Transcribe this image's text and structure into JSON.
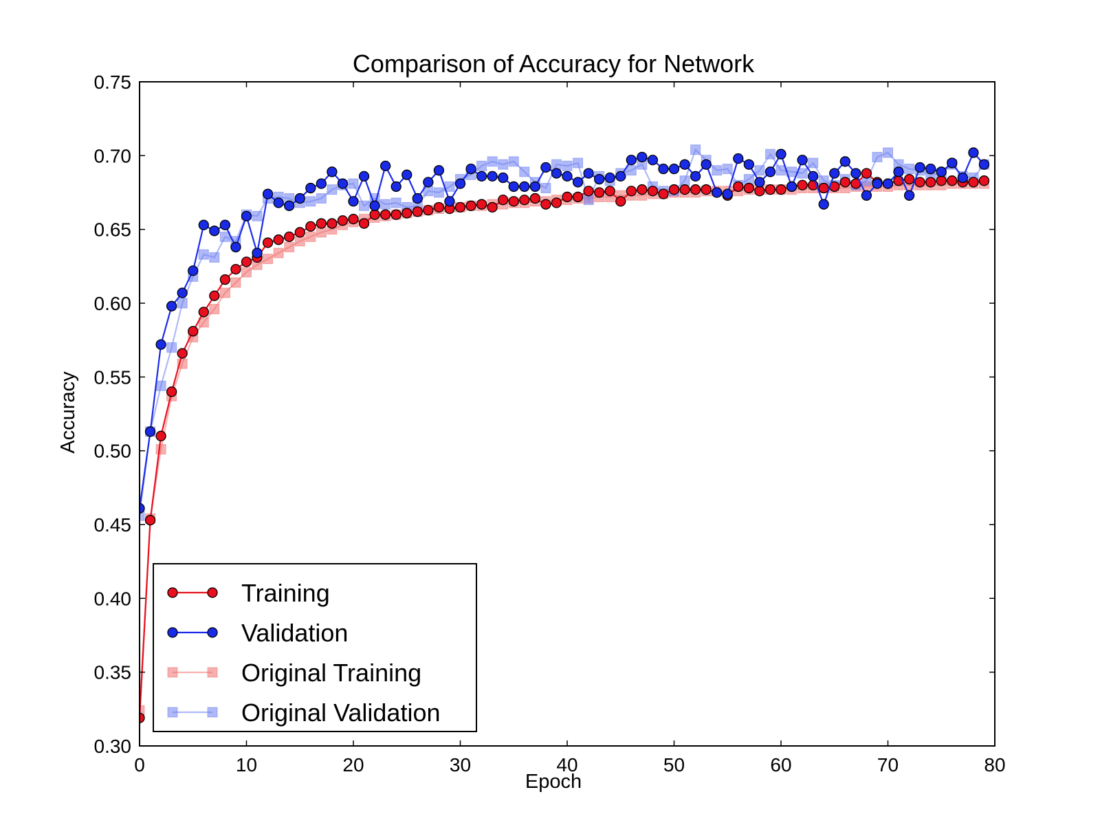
{
  "chart_data": {
    "type": "line",
    "title": "Comparison of Accuracy for Network",
    "xlabel": "Epoch",
    "ylabel": "Accuracy",
    "xlim": [
      0,
      80
    ],
    "ylim": [
      0.3,
      0.75
    ],
    "xticks": [
      "0",
      "10",
      "20",
      "30",
      "40",
      "50",
      "60",
      "70",
      "80"
    ],
    "yticks": [
      "0.30",
      "0.35",
      "0.40",
      "0.45",
      "0.50",
      "0.55",
      "0.60",
      "0.65",
      "0.70",
      "0.75"
    ],
    "grid": false,
    "legend_position": "lower-left",
    "x": [
      0,
      1,
      2,
      3,
      4,
      5,
      6,
      7,
      8,
      9,
      10,
      11,
      12,
      13,
      14,
      15,
      16,
      17,
      18,
      19,
      20,
      21,
      22,
      23,
      24,
      25,
      26,
      27,
      28,
      29,
      30,
      31,
      32,
      33,
      34,
      35,
      36,
      37,
      38,
      39,
      40,
      41,
      42,
      43,
      44,
      45,
      46,
      47,
      48,
      49,
      50,
      51,
      52,
      53,
      54,
      55,
      56,
      57,
      58,
      59,
      60,
      61,
      62,
      63,
      64,
      65,
      66,
      67,
      68,
      69,
      70,
      71,
      72,
      73,
      74,
      75,
      76,
      77,
      78,
      79
    ],
    "series": [
      {
        "name": "Original Training",
        "color": "#f07070",
        "marker": "square",
        "values": [
          0.324,
          0.454,
          0.501,
          0.537,
          0.559,
          0.577,
          0.587,
          0.596,
          0.607,
          0.614,
          0.621,
          0.626,
          0.63,
          0.634,
          0.638,
          0.642,
          0.645,
          0.648,
          0.65,
          0.653,
          0.655,
          0.657,
          0.658,
          0.659,
          0.66,
          0.661,
          0.662,
          0.663,
          0.664,
          0.665,
          0.665,
          0.666,
          0.666,
          0.667,
          0.667,
          0.668,
          0.668,
          0.669,
          0.669,
          0.67,
          0.67,
          0.671,
          0.671,
          0.672,
          0.672,
          0.673,
          0.673,
          0.673,
          0.674,
          0.674,
          0.675,
          0.675,
          0.675,
          0.676,
          0.676,
          0.676,
          0.676,
          0.677,
          0.677,
          0.677,
          0.677,
          0.677,
          0.678,
          0.678,
          0.678,
          0.678,
          0.678,
          0.679,
          0.679,
          0.679,
          0.679,
          0.68,
          0.68,
          0.68,
          0.68,
          0.68,
          0.681,
          0.681,
          0.681,
          0.681
        ]
      },
      {
        "name": "Original Validation",
        "color": "#6d7ff0",
        "marker": "square",
        "values": [
          0.456,
          0.513,
          0.544,
          0.57,
          0.6,
          0.618,
          0.633,
          0.631,
          0.645,
          0.642,
          0.66,
          0.659,
          0.671,
          0.672,
          0.671,
          0.668,
          0.669,
          0.671,
          0.677,
          0.68,
          0.681,
          0.666,
          0.671,
          0.667,
          0.668,
          0.665,
          0.666,
          0.676,
          0.675,
          0.679,
          0.684,
          0.687,
          0.693,
          0.696,
          0.694,
          0.696,
          0.689,
          0.682,
          0.678,
          0.694,
          0.693,
          0.695,
          0.67,
          0.686,
          0.683,
          0.688,
          0.69,
          0.694,
          0.679,
          0.676,
          0.676,
          0.683,
          0.704,
          0.697,
          0.69,
          0.691,
          0.68,
          0.684,
          0.69,
          0.701,
          0.69,
          0.689,
          0.688,
          0.695,
          0.683,
          0.68,
          0.684,
          0.68,
          0.683,
          0.699,
          0.702,
          0.694,
          0.691,
          0.69,
          0.687,
          0.688,
          0.694,
          0.686,
          0.685,
          0.694
        ]
      },
      {
        "name": "Training",
        "color": "#e8101e",
        "marker": "circle",
        "values": [
          0.319,
          0.453,
          0.51,
          0.54,
          0.566,
          0.581,
          0.594,
          0.605,
          0.616,
          0.623,
          0.628,
          0.631,
          0.641,
          0.643,
          0.645,
          0.648,
          0.652,
          0.654,
          0.654,
          0.656,
          0.657,
          0.654,
          0.66,
          0.66,
          0.66,
          0.661,
          0.662,
          0.663,
          0.665,
          0.664,
          0.665,
          0.666,
          0.667,
          0.665,
          0.67,
          0.669,
          0.67,
          0.671,
          0.667,
          0.668,
          0.672,
          0.672,
          0.676,
          0.675,
          0.676,
          0.669,
          0.676,
          0.677,
          0.676,
          0.674,
          0.677,
          0.677,
          0.677,
          0.677,
          0.675,
          0.673,
          0.679,
          0.678,
          0.676,
          0.677,
          0.677,
          0.679,
          0.68,
          0.68,
          0.678,
          0.679,
          0.682,
          0.681,
          0.688,
          0.682,
          0.681,
          0.683,
          0.684,
          0.682,
          0.682,
          0.683,
          0.683,
          0.682,
          0.682,
          0.683
        ]
      },
      {
        "name": "Validation",
        "color": "#1a2be8",
        "marker": "circle",
        "values": [
          0.461,
          0.513,
          0.572,
          0.598,
          0.607,
          0.622,
          0.653,
          0.649,
          0.653,
          0.638,
          0.659,
          0.634,
          0.674,
          0.668,
          0.666,
          0.671,
          0.678,
          0.681,
          0.689,
          0.681,
          0.669,
          0.686,
          0.666,
          0.693,
          0.679,
          0.687,
          0.671,
          0.682,
          0.69,
          0.669,
          0.681,
          0.691,
          0.686,
          0.686,
          0.685,
          0.679,
          0.679,
          0.679,
          0.692,
          0.688,
          0.686,
          0.682,
          0.688,
          0.684,
          0.685,
          0.686,
          0.697,
          0.699,
          0.697,
          0.691,
          0.691,
          0.694,
          0.686,
          0.694,
          0.675,
          0.674,
          0.698,
          0.694,
          0.682,
          0.689,
          0.701,
          0.679,
          0.697,
          0.686,
          0.667,
          0.688,
          0.696,
          0.688,
          0.673,
          0.681,
          0.681,
          0.689,
          0.673,
          0.692,
          0.691,
          0.689,
          0.695,
          0.685,
          0.702,
          0.694
        ]
      }
    ],
    "legend_order": [
      "Training",
      "Validation",
      "Original Training",
      "Original Validation"
    ]
  }
}
